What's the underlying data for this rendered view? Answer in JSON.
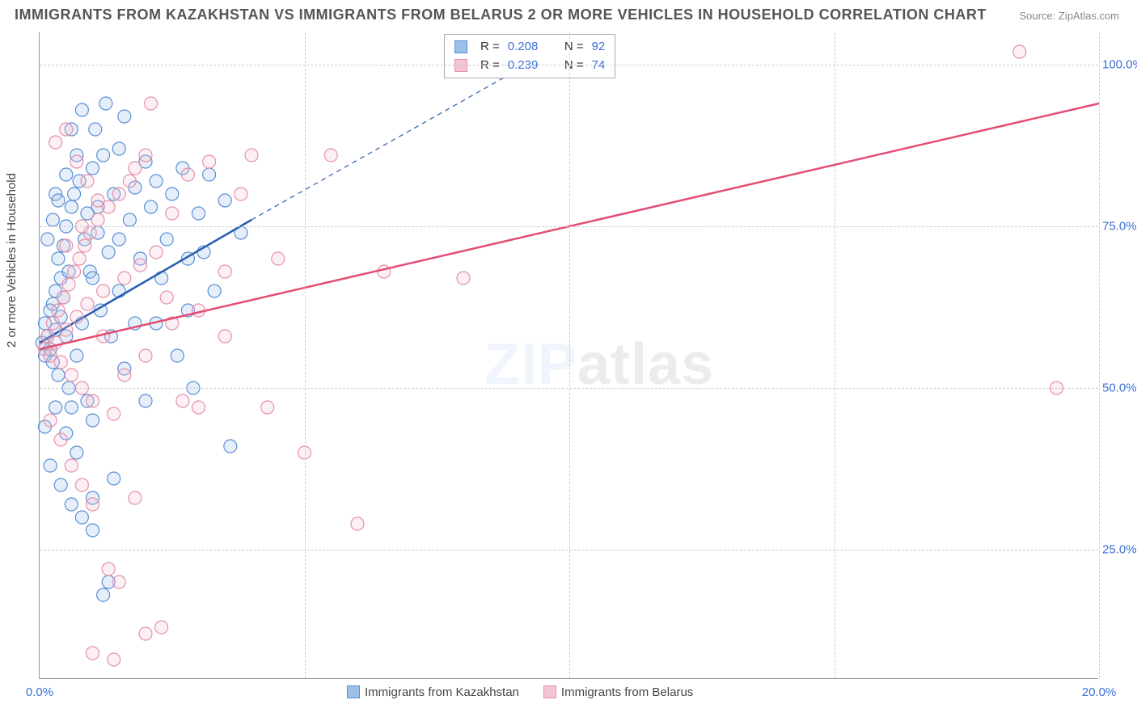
{
  "title": "IMMIGRANTS FROM KAZAKHSTAN VS IMMIGRANTS FROM BELARUS 2 OR MORE VEHICLES IN HOUSEHOLD CORRELATION CHART",
  "source": "Source: ZipAtlas.com",
  "ylabel": "2 or more Vehicles in Household",
  "watermark": {
    "zip": "ZIP",
    "atlas": "atlas"
  },
  "chart": {
    "type": "scatter",
    "background_color": "#ffffff",
    "grid_color": "#cccccc",
    "axis_color": "#999999",
    "xlim": [
      0,
      20
    ],
    "ylim": [
      5,
      105
    ],
    "xticks": [
      {
        "value": 0,
        "label": "0.0%"
      },
      {
        "value": 20,
        "label": "20.0%"
      }
    ],
    "yticks": [
      {
        "value": 25,
        "label": "25.0%"
      },
      {
        "value": 50,
        "label": "50.0%"
      },
      {
        "value": 75,
        "label": "75.0%"
      },
      {
        "value": 100,
        "label": "100.0%"
      }
    ],
    "vgrids": [
      5,
      10,
      15,
      20
    ],
    "tick_color": "#3a6fd8",
    "tick_fontsize": 15,
    "marker_radius": 8,
    "marker_stroke_width": 1.2,
    "marker_fill_opacity": 0.25,
    "line_width": 2.5,
    "series": [
      {
        "id": "kazakhstan",
        "label": "Immigrants from Kazakhstan",
        "color_stroke": "#5a8fd6",
        "color_fill": "#9cc0e8",
        "line_color": "#2a5db0",
        "R": "0.208",
        "N": "92",
        "trend": {
          "x1": 0,
          "y1": 57,
          "x2": 4,
          "y2": 76,
          "dash_x2": 9.2,
          "dash_y2": 100
        },
        "points": [
          [
            0.05,
            57
          ],
          [
            0.1,
            55
          ],
          [
            0.1,
            60
          ],
          [
            0.15,
            58
          ],
          [
            0.2,
            56
          ],
          [
            0.2,
            62
          ],
          [
            0.25,
            54
          ],
          [
            0.25,
            63
          ],
          [
            0.3,
            59
          ],
          [
            0.3,
            65
          ],
          [
            0.35,
            70
          ],
          [
            0.35,
            52
          ],
          [
            0.4,
            67
          ],
          [
            0.4,
            61
          ],
          [
            0.45,
            72
          ],
          [
            0.5,
            58
          ],
          [
            0.5,
            75
          ],
          [
            0.55,
            50
          ],
          [
            0.6,
            78
          ],
          [
            0.6,
            47
          ],
          [
            0.65,
            80
          ],
          [
            0.7,
            55
          ],
          [
            0.75,
            82
          ],
          [
            0.8,
            60
          ],
          [
            0.85,
            73
          ],
          [
            0.9,
            48
          ],
          [
            0.95,
            68
          ],
          [
            1.0,
            84
          ],
          [
            1.0,
            45
          ],
          [
            1.05,
            90
          ],
          [
            1.1,
            78
          ],
          [
            1.15,
            62
          ],
          [
            1.2,
            86
          ],
          [
            1.25,
            94
          ],
          [
            1.3,
            71
          ],
          [
            1.35,
            58
          ],
          [
            1.4,
            80
          ],
          [
            1.5,
            87
          ],
          [
            1.5,
            65
          ],
          [
            1.6,
            92
          ],
          [
            1.6,
            53
          ],
          [
            1.7,
            76
          ],
          [
            1.8,
            81
          ],
          [
            1.8,
            60
          ],
          [
            1.9,
            70
          ],
          [
            2.0,
            85
          ],
          [
            2.0,
            48
          ],
          [
            2.1,
            78
          ],
          [
            2.2,
            82
          ],
          [
            2.3,
            67
          ],
          [
            2.4,
            73
          ],
          [
            2.5,
            80
          ],
          [
            2.6,
            55
          ],
          [
            2.7,
            84
          ],
          [
            2.8,
            62
          ],
          [
            2.9,
            50
          ],
          [
            3.0,
            77
          ],
          [
            3.1,
            71
          ],
          [
            3.2,
            83
          ],
          [
            3.3,
            65
          ],
          [
            3.5,
            79
          ],
          [
            3.6,
            41
          ],
          [
            3.8,
            74
          ],
          [
            0.2,
            38
          ],
          [
            0.4,
            35
          ],
          [
            0.6,
            32
          ],
          [
            0.8,
            30
          ],
          [
            1.0,
            33
          ],
          [
            1.2,
            18
          ],
          [
            1.4,
            36
          ],
          [
            0.3,
            80
          ],
          [
            0.5,
            83
          ],
          [
            0.7,
            86
          ],
          [
            0.9,
            77
          ],
          [
            1.1,
            74
          ],
          [
            0.15,
            73
          ],
          [
            0.25,
            76
          ],
          [
            0.35,
            79
          ],
          [
            0.45,
            64
          ],
          [
            0.55,
            68
          ],
          [
            0.1,
            44
          ],
          [
            0.3,
            47
          ],
          [
            0.5,
            43
          ],
          [
            0.7,
            40
          ],
          [
            1.0,
            28
          ],
          [
            1.3,
            20
          ],
          [
            0.6,
            90
          ],
          [
            0.8,
            93
          ],
          [
            1.0,
            67
          ],
          [
            1.5,
            73
          ],
          [
            2.2,
            60
          ],
          [
            2.8,
            70
          ]
        ]
      },
      {
        "id": "belarus",
        "label": "Immigrants from Belarus",
        "color_stroke": "#e690a8",
        "color_fill": "#f5c5d3",
        "line_color": "#e34d73",
        "R": "0.239",
        "N": "74",
        "trend": {
          "x1": 0,
          "y1": 56,
          "x2": 20,
          "y2": 94
        },
        "points": [
          [
            0.1,
            56
          ],
          [
            0.15,
            58
          ],
          [
            0.2,
            55
          ],
          [
            0.25,
            60
          ],
          [
            0.3,
            57
          ],
          [
            0.35,
            62
          ],
          [
            0.4,
            54
          ],
          [
            0.45,
            64
          ],
          [
            0.5,
            59
          ],
          [
            0.55,
            66
          ],
          [
            0.6,
            52
          ],
          [
            0.65,
            68
          ],
          [
            0.7,
            61
          ],
          [
            0.75,
            70
          ],
          [
            0.8,
            50
          ],
          [
            0.85,
            72
          ],
          [
            0.9,
            63
          ],
          [
            0.95,
            74
          ],
          [
            1.0,
            48
          ],
          [
            1.1,
            76
          ],
          [
            1.2,
            65
          ],
          [
            1.3,
            78
          ],
          [
            1.4,
            46
          ],
          [
            1.5,
            80
          ],
          [
            1.6,
            67
          ],
          [
            1.7,
            82
          ],
          [
            1.8,
            84
          ],
          [
            1.9,
            69
          ],
          [
            2.0,
            86
          ],
          [
            2.1,
            94
          ],
          [
            2.2,
            71
          ],
          [
            2.4,
            64
          ],
          [
            2.5,
            77
          ],
          [
            2.7,
            48
          ],
          [
            2.8,
            83
          ],
          [
            3.0,
            47
          ],
          [
            3.2,
            85
          ],
          [
            3.5,
            68
          ],
          [
            3.8,
            80
          ],
          [
            4.0,
            86
          ],
          [
            4.3,
            47
          ],
          [
            4.5,
            70
          ],
          [
            5.0,
            40
          ],
          [
            5.5,
            86
          ],
          [
            6.0,
            29
          ],
          [
            6.5,
            68
          ],
          [
            8.0,
            67
          ],
          [
            18.5,
            102
          ],
          [
            19.2,
            50
          ],
          [
            0.3,
            88
          ],
          [
            0.5,
            90
          ],
          [
            0.7,
            85
          ],
          [
            0.9,
            82
          ],
          [
            1.1,
            79
          ],
          [
            0.2,
            45
          ],
          [
            0.4,
            42
          ],
          [
            0.6,
            38
          ],
          [
            0.8,
            35
          ],
          [
            1.0,
            32
          ],
          [
            1.3,
            22
          ],
          [
            1.5,
            20
          ],
          [
            1.8,
            33
          ],
          [
            2.0,
            12
          ],
          [
            2.3,
            13
          ],
          [
            1.0,
            9
          ],
          [
            1.4,
            8
          ],
          [
            0.5,
            72
          ],
          [
            0.8,
            75
          ],
          [
            1.2,
            58
          ],
          [
            1.6,
            52
          ],
          [
            2.0,
            55
          ],
          [
            2.5,
            60
          ],
          [
            3.0,
            62
          ],
          [
            3.5,
            58
          ]
        ]
      }
    ]
  },
  "stats_labels": {
    "R": "R =",
    "N": "N ="
  },
  "legend_bottom": [
    {
      "ref": "kazakhstan"
    },
    {
      "ref": "belarus"
    }
  ]
}
